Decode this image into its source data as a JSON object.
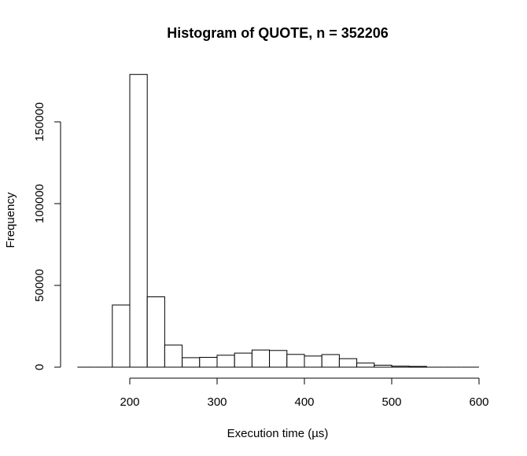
{
  "chart_data": {
    "type": "bar",
    "title": "Histogram of QUOTE, n = 352206",
    "xlabel": "Execution time (µs)",
    "ylabel": "Frequency",
    "bin_width": 20,
    "bins": [
      {
        "x0": 140,
        "x1": 160,
        "count": 0
      },
      {
        "x0": 160,
        "x1": 180,
        "count": 200
      },
      {
        "x0": 180,
        "x1": 200,
        "count": 38000
      },
      {
        "x0": 200,
        "x1": 220,
        "count": 179000
      },
      {
        "x0": 220,
        "x1": 240,
        "count": 43000
      },
      {
        "x0": 240,
        "x1": 260,
        "count": 13500
      },
      {
        "x0": 260,
        "x1": 280,
        "count": 5800
      },
      {
        "x0": 280,
        "x1": 300,
        "count": 6000
      },
      {
        "x0": 300,
        "x1": 320,
        "count": 7300
      },
      {
        "x0": 320,
        "x1": 340,
        "count": 8600
      },
      {
        "x0": 340,
        "x1": 360,
        "count": 10500
      },
      {
        "x0": 360,
        "x1": 380,
        "count": 10200
      },
      {
        "x0": 380,
        "x1": 400,
        "count": 7800
      },
      {
        "x0": 400,
        "x1": 420,
        "count": 6800
      },
      {
        "x0": 420,
        "x1": 440,
        "count": 7700
      },
      {
        "x0": 440,
        "x1": 460,
        "count": 5200
      },
      {
        "x0": 460,
        "x1": 480,
        "count": 2500
      },
      {
        "x0": 480,
        "x1": 500,
        "count": 1200
      },
      {
        "x0": 500,
        "x1": 520,
        "count": 600
      },
      {
        "x0": 520,
        "x1": 540,
        "count": 450
      },
      {
        "x0": 540,
        "x1": 560,
        "count": 350
      },
      {
        "x0": 560,
        "x1": 580,
        "count": 250
      },
      {
        "x0": 580,
        "x1": 600,
        "count": 200
      }
    ],
    "xlim": [
      140,
      600
    ],
    "ylim": [
      0,
      180000
    ],
    "x_ticks": [
      200,
      300,
      400,
      500,
      600
    ],
    "y_ticks": [
      0,
      50000,
      100000,
      150000
    ],
    "x_tick_labels": [
      "200",
      "300",
      "400",
      "500",
      "600"
    ],
    "y_tick_labels": [
      "0",
      "50000",
      "100000",
      "150000"
    ],
    "grid": false,
    "legend": "none"
  }
}
